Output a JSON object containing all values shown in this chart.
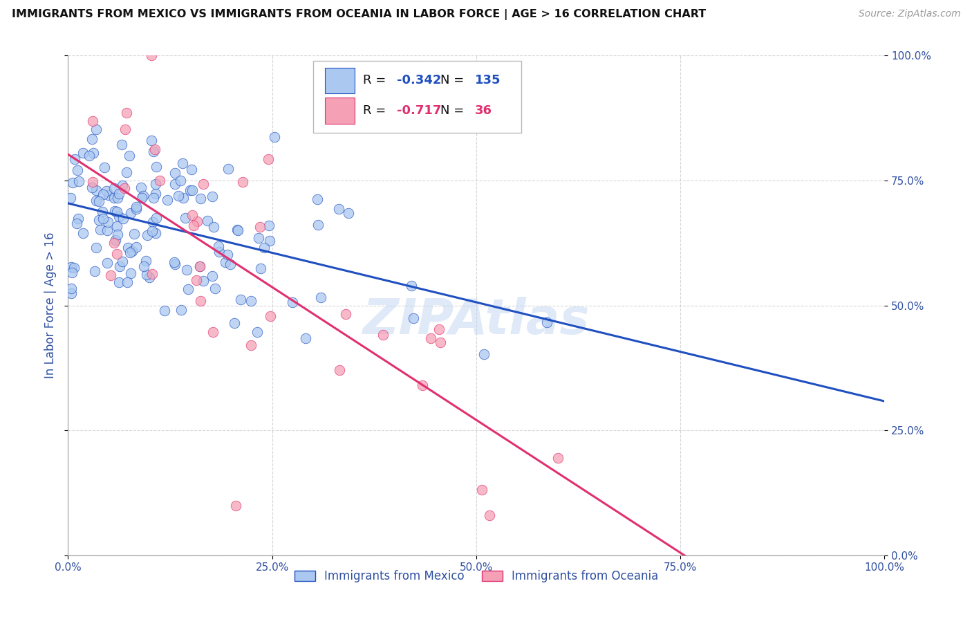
{
  "title": "IMMIGRANTS FROM MEXICO VS IMMIGRANTS FROM OCEANIA IN LABOR FORCE | AGE > 16 CORRELATION CHART",
  "source": "Source: ZipAtlas.com",
  "ylabel": "In Labor Force | Age > 16",
  "legend_label1": "Immigrants from Mexico",
  "legend_label2": "Immigrants from Oceania",
  "R1": -0.342,
  "N1": 135,
  "R2": -0.717,
  "N2": 36,
  "color_mexico": "#aac8f0",
  "color_oceania": "#f5a0b5",
  "line_color_mexico": "#2050c0",
  "line_color_oceania": "#e03070",
  "watermark": "ZIPAtlas",
  "background_color": "#ffffff",
  "grid_color": "#cccccc",
  "title_color": "#111111",
  "axis_label_color": "#3050a0",
  "tick_label_color": "#3050a0",
  "xlim": [
    0.0,
    1.0
  ],
  "ylim": [
    0.0,
    1.0
  ]
}
